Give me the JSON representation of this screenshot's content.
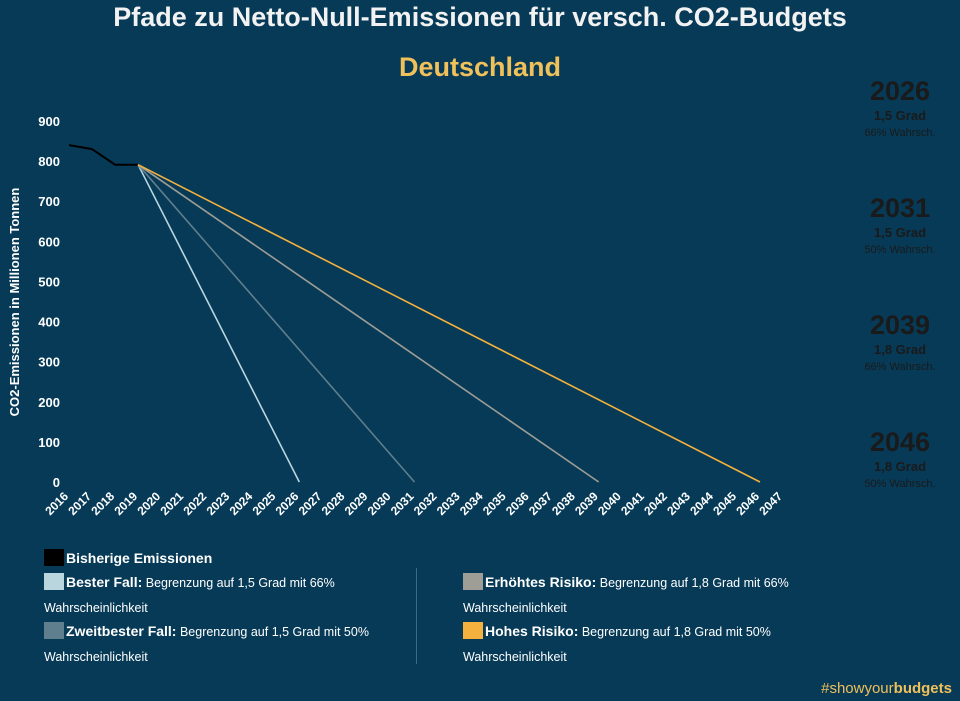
{
  "title": "Pfade zu Netto-Null-Emissionen für versch. CO2-Budgets",
  "subtitle": "Deutschland",
  "colors": {
    "background": "#063a57",
    "historic": "#000000",
    "best": "#b9d6df",
    "second": "#5f7f8e",
    "elevated": "#9e9d96",
    "high": "#f5b13d"
  },
  "chart_data": {
    "type": "line",
    "ylabel": "CO2-Emissionen in Millionen Tonnen",
    "ylim": [
      0,
      900
    ],
    "yticks": [
      0,
      100,
      200,
      300,
      400,
      500,
      600,
      700,
      800,
      900
    ],
    "xticks": [
      "2016",
      "2017",
      "2018",
      "2019",
      "2020",
      "2021",
      "2022",
      "2023",
      "2024",
      "2025",
      "2026",
      "2027",
      "2028",
      "2029",
      "2030",
      "2031",
      "2032",
      "2033",
      "2034",
      "2035",
      "2036",
      "2037",
      "2038",
      "2039",
      "2040",
      "2041",
      "2042",
      "2043",
      "2044",
      "2045",
      "2046",
      "2047"
    ],
    "series": [
      {
        "name": "Bisherige Emissionen",
        "color": "#000000",
        "points": [
          [
            2016,
            840
          ],
          [
            2017,
            830
          ],
          [
            2018,
            791
          ],
          [
            2019,
            791
          ]
        ]
      },
      {
        "name": "Bester Fall",
        "color": "#b9d6df",
        "points": [
          [
            2019,
            791
          ],
          [
            2026,
            0
          ]
        ]
      },
      {
        "name": "Zweitbester Fall",
        "color": "#5f7f8e",
        "points": [
          [
            2019,
            791
          ],
          [
            2031,
            0
          ]
        ]
      },
      {
        "name": "Erhöhtes Risiko",
        "color": "#9e9d96",
        "points": [
          [
            2019,
            791
          ],
          [
            2039,
            0
          ]
        ]
      },
      {
        "name": "Hohes Risiko",
        "color": "#f5b13d",
        "points": [
          [
            2019,
            791
          ],
          [
            2046,
            0
          ]
        ]
      }
    ]
  },
  "circles": [
    {
      "year": "2026",
      "deg": "1,5 Grad",
      "prob": "66% Wahrsch.",
      "color": "#b9d6df"
    },
    {
      "year": "2031",
      "deg": "1,5 Grad",
      "prob": "50% Wahrsch.",
      "color": "#5f7f8e"
    },
    {
      "year": "2039",
      "deg": "1,8 Grad",
      "prob": "66% Wahrsch.",
      "color": "#9e9d96"
    },
    {
      "year": "2046",
      "deg": "1,8 Grad",
      "prob": "50% Wahrsch.",
      "color": "#f5b13d"
    }
  ],
  "legend": {
    "historic": "Bisherige Emissionen",
    "items": [
      {
        "tag": "Bester Fall:",
        "text": "Begrenzung auf 1,5 Grad mit 66%",
        "text2": "Wahrscheinlichkeit",
        "color": "#b9d6df"
      },
      {
        "tag": "Zweitbester Fall:",
        "text": "Begrenzung auf 1,5 Grad mit 50%",
        "text2": "Wahrscheinlichkeit",
        "color": "#5f7f8e"
      },
      {
        "tag": "Erhöhtes Risiko:",
        "text": "Begrenzung auf 1,8 Grad mit 66%",
        "text2": "Wahrscheinlichkeit",
        "color": "#9e9d96"
      },
      {
        "tag": "Hohes Risiko:",
        "text": "Begrenzung auf 1,8 Grad mit 50%",
        "text2": "Wahrscheinlichkeit",
        "color": "#f5b13d"
      }
    ]
  },
  "hashtag": {
    "pre": "#showyour",
    "post": "budgets"
  }
}
